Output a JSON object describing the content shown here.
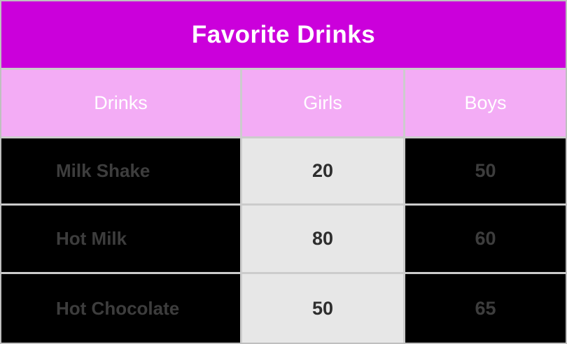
{
  "chart_data": {
    "type": "table",
    "title": "Favorite Drinks",
    "columns": [
      "Drinks",
      "Girls",
      "Boys"
    ],
    "categories": [
      "Milk Shake",
      "Hot Milk",
      "Hot Chocolate"
    ],
    "series": [
      {
        "name": "Girls",
        "values": [
          20,
          80,
          50
        ]
      },
      {
        "name": "Boys",
        "values": [
          50,
          60,
          65
        ]
      }
    ],
    "rows": [
      [
        "Milk Shake",
        "20",
        "50"
      ],
      [
        "Hot Milk",
        "80",
        "60"
      ],
      [
        "Hot Chocolate",
        "50",
        "65"
      ]
    ]
  },
  "colors": {
    "title_bg": "#cb00db",
    "header_bg": "#f3acf5",
    "dark_cell_bg": "#000000",
    "light_cell_bg": "#e7e7e7",
    "grid_line": "#cccccc",
    "outer_border": "#bfbfbf",
    "title_text": "#ffffff",
    "header_text": "#ffffff",
    "dark_cell_text": "#3d3d3d",
    "light_cell_text": "#2e2e2e"
  }
}
